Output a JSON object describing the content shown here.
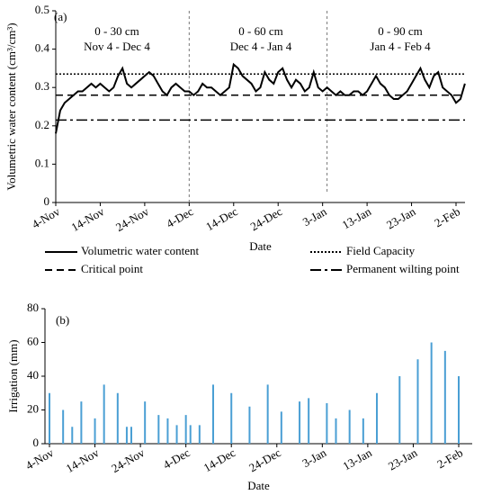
{
  "chart_data": [
    {
      "type": "line",
      "panel_label": "(a)",
      "x_label": "Date",
      "y_label": "Volumetric water content (cm³/cm³)",
      "categories": [
        "4-Nov",
        null,
        null,
        null,
        null,
        null,
        null,
        null,
        null,
        null,
        "14-Nov",
        null,
        null,
        null,
        null,
        null,
        null,
        null,
        null,
        null,
        "24-Nov",
        null,
        null,
        null,
        null,
        null,
        null,
        null,
        null,
        null,
        "4-Dec",
        null,
        null,
        null,
        null,
        null,
        null,
        null,
        null,
        null,
        "14-Dec",
        null,
        null,
        null,
        null,
        null,
        null,
        null,
        null,
        null,
        "24-Dec",
        null,
        null,
        null,
        null,
        null,
        null,
        null,
        null,
        null,
        "3-Jan",
        null,
        null,
        null,
        null,
        null,
        null,
        null,
        null,
        null,
        "13-Jan",
        null,
        null,
        null,
        null,
        null,
        null,
        null,
        null,
        null,
        "23-Jan",
        null,
        null,
        null,
        null,
        null,
        null,
        null,
        null,
        null,
        "2-Feb",
        null,
        null
      ],
      "series": [
        {
          "name": "Volumetric water content",
          "color": "#000000",
          "values": [
            0.18,
            0.24,
            0.26,
            0.27,
            0.28,
            0.29,
            0.29,
            0.3,
            0.31,
            0.3,
            0.31,
            0.3,
            0.29,
            0.3,
            0.33,
            0.35,
            0.31,
            0.3,
            0.31,
            0.32,
            0.33,
            0.34,
            0.33,
            0.31,
            0.29,
            0.28,
            0.3,
            0.31,
            0.3,
            0.29,
            0.29,
            0.28,
            0.29,
            0.31,
            0.3,
            0.3,
            0.29,
            0.28,
            0.29,
            0.3,
            0.36,
            0.35,
            0.33,
            0.32,
            0.31,
            0.29,
            0.3,
            0.34,
            0.32,
            0.31,
            0.34,
            0.35,
            0.32,
            0.3,
            0.32,
            0.31,
            0.29,
            0.3,
            0.34,
            0.3,
            0.29,
            0.3,
            0.29,
            0.28,
            0.29,
            0.28,
            0.28,
            0.29,
            0.29,
            0.28,
            0.29,
            0.31,
            0.33,
            0.31,
            0.3,
            0.28,
            0.27,
            0.27,
            0.28,
            0.29,
            0.31,
            0.33,
            0.35,
            0.32,
            0.3,
            0.33,
            0.34,
            0.3,
            0.29,
            0.28,
            0.26,
            0.27,
            0.31
          ]
        }
      ],
      "reference_lines": [
        {
          "name": "Field Capacity",
          "value": 0.335,
          "style": "dotted"
        },
        {
          "name": "Critical point",
          "value": 0.28,
          "style": "dashed"
        },
        {
          "name": "Permanent wilting point",
          "value": 0.215,
          "style": "dashdot"
        }
      ],
      "zones": [
        {
          "depth": "0 - 30 cm",
          "period": "Nov 4 - Dec 4"
        },
        {
          "depth": "0 - 60 cm",
          "period": "Dec 4 - Jan 4"
        },
        {
          "depth": "0 - 90 cm",
          "period": "Jan 4 - Feb 4"
        }
      ],
      "boundaries": [
        30,
        61
      ],
      "ylim": [
        0,
        0.5
      ],
      "yticks": [
        0,
        0.1,
        0.2,
        0.3,
        0.4,
        0.5
      ]
    },
    {
      "type": "bar",
      "panel_label": "(b)",
      "x_label": "Date",
      "y_label": "Irrigation (mm)",
      "color": "#4a9fd4",
      "categories": [
        "4-Nov",
        null,
        null,
        null,
        null,
        null,
        null,
        null,
        null,
        null,
        "14-Nov",
        null,
        null,
        null,
        null,
        null,
        null,
        null,
        null,
        null,
        "24-Nov",
        null,
        null,
        null,
        null,
        null,
        null,
        null,
        null,
        null,
        "4-Dec",
        null,
        null,
        null,
        null,
        null,
        null,
        null,
        null,
        null,
        "14-Dec",
        null,
        null,
        null,
        null,
        null,
        null,
        null,
        null,
        null,
        "24-Dec",
        null,
        null,
        null,
        null,
        null,
        null,
        null,
        null,
        null,
        "3-Jan",
        null,
        null,
        null,
        null,
        null,
        null,
        null,
        null,
        null,
        "13-Jan",
        null,
        null,
        null,
        null,
        null,
        null,
        null,
        null,
        null,
        "23-Jan",
        null,
        null,
        null,
        null,
        null,
        null,
        null,
        null,
        null,
        "2-Feb",
        null,
        null
      ],
      "values": [
        30,
        0,
        0,
        20,
        0,
        10,
        0,
        25,
        0,
        0,
        15,
        0,
        35,
        0,
        0,
        30,
        0,
        10,
        10,
        0,
        0,
        25,
        0,
        0,
        17,
        0,
        15,
        0,
        11,
        0,
        17,
        11,
        0,
        11,
        0,
        0,
        35,
        0,
        0,
        0,
        30,
        0,
        0,
        0,
        22,
        0,
        0,
        0,
        35,
        0,
        0,
        19,
        0,
        0,
        0,
        25,
        0,
        27,
        0,
        0,
        0,
        24,
        0,
        15,
        0,
        0,
        20,
        0,
        0,
        15,
        0,
        0,
        30,
        0,
        0,
        0,
        0,
        40,
        0,
        0,
        0,
        50,
        0,
        0,
        60,
        0,
        0,
        55,
        0,
        0,
        40,
        0,
        0
      ],
      "ylim": [
        0,
        80
      ],
      "yticks": [
        0,
        20,
        40,
        60,
        80
      ]
    }
  ]
}
